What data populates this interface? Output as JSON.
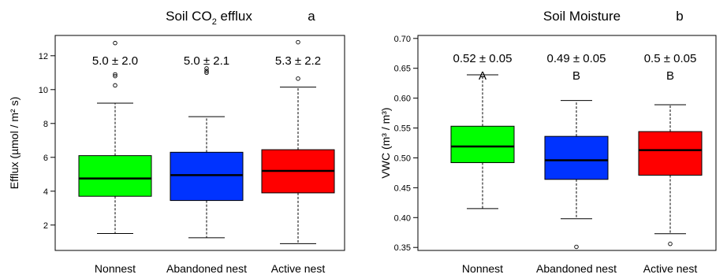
{
  "chart_data": [
    {
      "type": "box",
      "title": "Soil CO",
      "title_sub": "2",
      "title_rest": " efflux",
      "panel_letter": "a",
      "ylabel": "Efflux (µmol / m² s)",
      "ylim": [
        0.5,
        13.2
      ],
      "yticks": [
        2,
        4,
        6,
        8,
        10,
        12
      ],
      "categories": [
        "Nonnest",
        "Abandoned nest",
        "Active nest"
      ],
      "colors": [
        "#00ff00",
        "#0033ff",
        "#ff0000"
      ],
      "boxes": [
        {
          "whisker_low": 1.5,
          "q1": 3.7,
          "median": 4.75,
          "q3": 6.1,
          "whisker_high": 9.2,
          "outliers": [
            10.25,
            10.8,
            10.9,
            12.75
          ]
        },
        {
          "whisker_low": 1.25,
          "q1": 3.45,
          "median": 4.95,
          "q3": 6.3,
          "whisker_high": 8.4,
          "outliers": [
            11.0,
            11.1,
            11.25
          ]
        },
        {
          "whisker_low": 0.9,
          "q1": 3.9,
          "median": 5.2,
          "q3": 6.45,
          "whisker_high": 10.15,
          "outliers": [
            10.65,
            12.8
          ]
        }
      ],
      "annotations": [
        "5.0 ± 2.0",
        "5.0 ± 2.1",
        "5.3 ± 2.2"
      ],
      "letters": []
    },
    {
      "type": "box",
      "title": "Soil Moisture",
      "title_sub": "",
      "title_rest": "",
      "panel_letter": "b",
      "ylabel": "VWC (m³ / m³)",
      "ylim": [
        0.345,
        0.705
      ],
      "yticks": [
        0.35,
        0.4,
        0.45,
        0.5,
        0.55,
        0.6,
        0.65,
        0.7
      ],
      "ytick_labels": [
        "0.35",
        "0.40",
        "0.45",
        "0.50",
        "0.55",
        "0.60",
        "0.65",
        "0.70"
      ],
      "categories": [
        "Nonnest",
        "Abandoned nest",
        "Active nest"
      ],
      "colors": [
        "#00ff00",
        "#0033ff",
        "#ff0000"
      ],
      "boxes": [
        {
          "whisker_low": 0.415,
          "q1": 0.492,
          "median": 0.519,
          "q3": 0.553,
          "whisker_high": 0.639,
          "outliers": []
        },
        {
          "whisker_low": 0.398,
          "q1": 0.464,
          "median": 0.496,
          "q3": 0.536,
          "whisker_high": 0.596,
          "outliers": [
            0.351
          ]
        },
        {
          "whisker_low": 0.373,
          "q1": 0.471,
          "median": 0.513,
          "q3": 0.544,
          "whisker_high": 0.589,
          "outliers": [
            0.356
          ]
        }
      ],
      "annotations": [
        "0.52 ± 0.05",
        "0.49 ± 0.05",
        "0.5 ± 0.05"
      ],
      "letters": [
        "A",
        "B",
        "B"
      ]
    }
  ]
}
